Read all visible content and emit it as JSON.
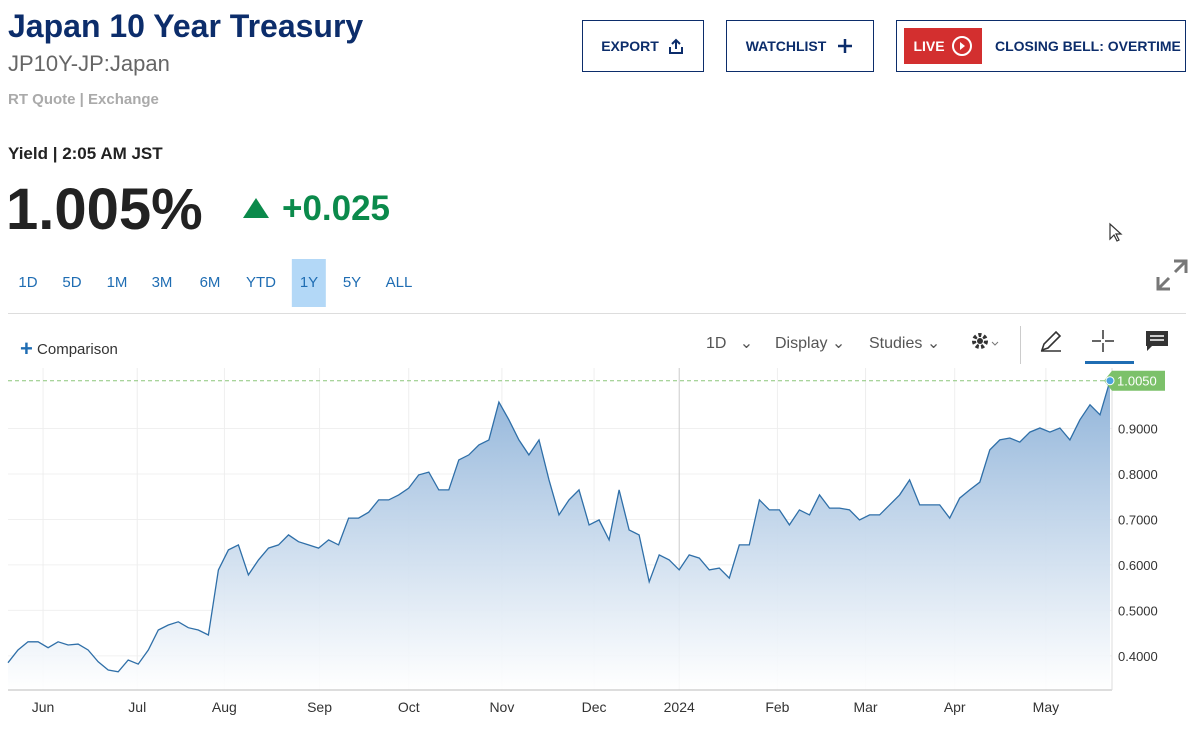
{
  "header": {
    "title": "Japan 10 Year Treasury",
    "symbol": "JP10Y-JP:Japan",
    "source": "RT Quote | Exchange"
  },
  "buttons": {
    "export": "EXPORT",
    "watchlist": "WATCHLIST",
    "live": "LIVE",
    "show": "CLOSING BELL: OVERTIME"
  },
  "quote": {
    "label": "Yield | 2:05 AM JST",
    "price": "1.005%",
    "change": "+0.025"
  },
  "ranges": [
    "1D",
    "5D",
    "1M",
    "3M",
    "6M",
    "YTD",
    "1Y",
    "5Y",
    "ALL"
  ],
  "selected_range": 6,
  "toolbar": {
    "comparison": "Comparison",
    "interval": "1D",
    "display": "Display",
    "studies": "Studies"
  },
  "chart_data": {
    "type": "line",
    "x": [
      0,
      1,
      2,
      3,
      4,
      5,
      6,
      7,
      8,
      9,
      10,
      11,
      12,
      13,
      14,
      15,
      16,
      17,
      18,
      19,
      20,
      21,
      22,
      23,
      24,
      25,
      26,
      27,
      28,
      29,
      30,
      31,
      32,
      33,
      34,
      35,
      36,
      37,
      38,
      39,
      40,
      41,
      42,
      43,
      44,
      45,
      46,
      47,
      48,
      49,
      50,
      51,
      52,
      53,
      54,
      55,
      56,
      57,
      58,
      59,
      60,
      61,
      62,
      63,
      64,
      65,
      66,
      67,
      68,
      69,
      70,
      71,
      72,
      73,
      74,
      75,
      76,
      77,
      78,
      79,
      80,
      81,
      82,
      83,
      84,
      85,
      86,
      87,
      88,
      89,
      90,
      91,
      92,
      93,
      94,
      95,
      96,
      97,
      98,
      99,
      100,
      101,
      102,
      103,
      104,
      105,
      106,
      107,
      108,
      109,
      110
    ],
    "series": [
      {
        "color": "#2f6fa8",
        "values": [
          0.385,
          0.413,
          0.431,
          0.431,
          0.418,
          0.431,
          0.424,
          0.426,
          0.413,
          0.387,
          0.369,
          0.365,
          0.391,
          0.382,
          0.413,
          0.457,
          0.468,
          0.475,
          0.462,
          0.457,
          0.446,
          0.589,
          0.633,
          0.644,
          0.578,
          0.611,
          0.637,
          0.644,
          0.666,
          0.651,
          0.644,
          0.637,
          0.655,
          0.644,
          0.703,
          0.703,
          0.716,
          0.743,
          0.743,
          0.754,
          0.769,
          0.798,
          0.804,
          0.765,
          0.765,
          0.831,
          0.842,
          0.864,
          0.875,
          0.958,
          0.919,
          0.875,
          0.842,
          0.875,
          0.787,
          0.71,
          0.743,
          0.765,
          0.688,
          0.699,
          0.655,
          0.765,
          0.677,
          0.666,
          0.563,
          0.622,
          0.611,
          0.589,
          0.622,
          0.615,
          0.589,
          0.593,
          0.571,
          0.644,
          0.644,
          0.743,
          0.721,
          0.721,
          0.688,
          0.721,
          0.71,
          0.754,
          0.725,
          0.725,
          0.721,
          0.699,
          0.71,
          0.71,
          0.732,
          0.754,
          0.787,
          0.732,
          0.732,
          0.732,
          0.703,
          0.747,
          0.765,
          0.782,
          0.853,
          0.875,
          0.879,
          0.87,
          0.892,
          0.901,
          0.892,
          0.901,
          0.875,
          0.919,
          0.952,
          0.93,
          1.005
        ]
      }
    ],
    "current": {
      "value": 1.005,
      "label": "1.0050"
    },
    "xlim": [
      0,
      110
    ],
    "xticks": [
      {
        "value": 3.5,
        "label": "Jun"
      },
      {
        "value": 12.9,
        "label": "Jul"
      },
      {
        "value": 21.6,
        "label": "Aug"
      },
      {
        "value": 31.1,
        "label": "Sep"
      },
      {
        "value": 40.0,
        "label": "Oct"
      },
      {
        "value": 49.3,
        "label": "Nov"
      },
      {
        "value": 58.5,
        "label": "Dec"
      },
      {
        "value": 67.0,
        "label": "2024"
      },
      {
        "value": 76.8,
        "label": "Feb"
      },
      {
        "value": 85.6,
        "label": "Mar"
      },
      {
        "value": 94.5,
        "label": "Apr"
      },
      {
        "value": 103.6,
        "label": "May"
      }
    ],
    "ylim": [
      0.325,
      1.033
    ],
    "yticks": [
      {
        "value": 0.4,
        "label": "0.4000"
      },
      {
        "value": 0.5,
        "label": "0.5000"
      },
      {
        "value": 0.6,
        "label": "0.6000"
      },
      {
        "value": 0.7,
        "label": "0.7000"
      },
      {
        "value": 0.8,
        "label": "0.8000"
      },
      {
        "value": 0.9,
        "label": "0.9000"
      }
    ],
    "grid": true
  }
}
